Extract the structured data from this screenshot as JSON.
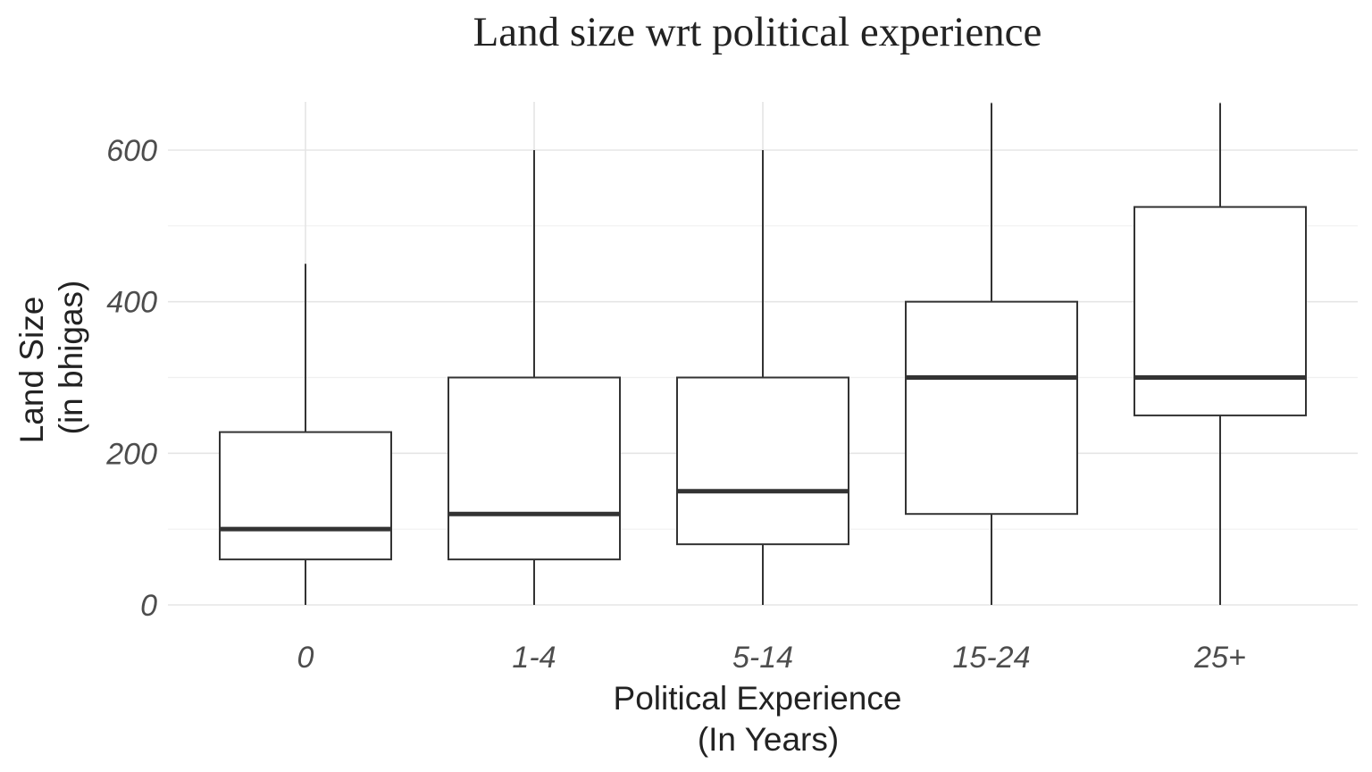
{
  "chart_data": {
    "type": "boxplot",
    "title": "Land size  wrt political experience",
    "xlabel_lines": [
      "Political Experience",
      "(In Years)"
    ],
    "ylabel_lines": [
      "Land Size",
      "(in bhigas)"
    ],
    "categories": [
      "0",
      "1-4",
      "5-14",
      "15-24",
      "25+"
    ],
    "ylim": [
      -10,
      662
    ],
    "y_ticks": [
      0,
      200,
      400,
      600
    ],
    "y_minor_ticks": [
      100,
      300,
      500
    ],
    "grid": true,
    "legend": "none",
    "boxes": [
      {
        "category": "0",
        "lower_whisker": 0,
        "q1": 60,
        "median": 100,
        "q3": 228,
        "upper_whisker": 450
      },
      {
        "category": "1-4",
        "lower_whisker": 0,
        "q1": 60,
        "median": 120,
        "q3": 300,
        "upper_whisker": 600
      },
      {
        "category": "5-14",
        "lower_whisker": 0,
        "q1": 80,
        "median": 150,
        "q3": 300,
        "upper_whisker": 600
      },
      {
        "category": "15-24",
        "lower_whisker": 0,
        "q1": 120,
        "median": 300,
        "q3": 400,
        "upper_whisker": 662
      },
      {
        "category": "25+",
        "lower_whisker": 0,
        "q1": 250,
        "median": 300,
        "q3": 525,
        "upper_whisker": 662
      }
    ]
  }
}
